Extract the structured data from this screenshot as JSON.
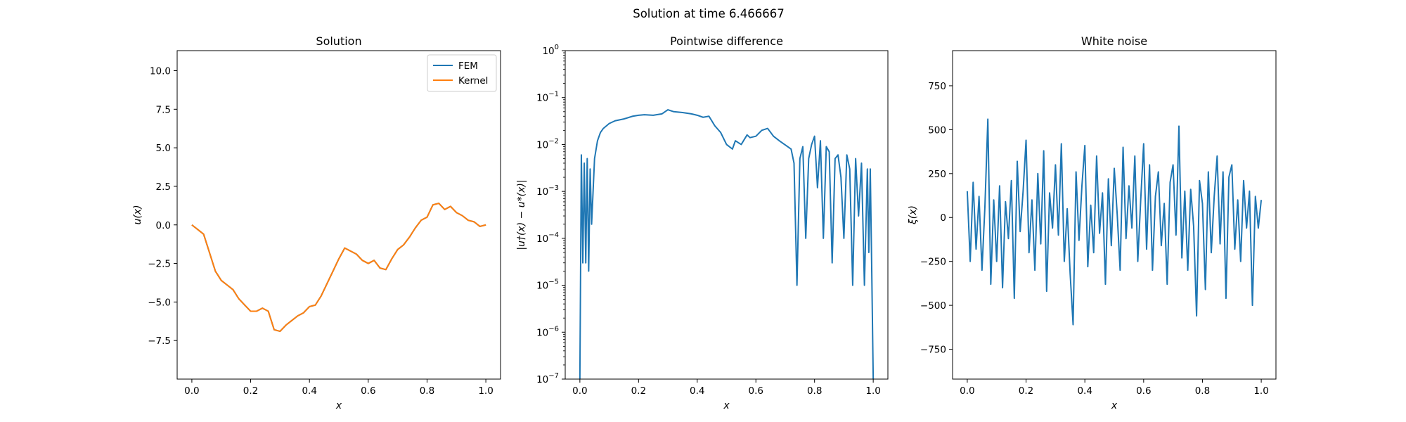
{
  "figure": {
    "title": "Solution at time 6.466667"
  },
  "colors": {
    "fem": "#1f77b4",
    "kernel": "#ff7f0e",
    "axes": "#000000",
    "background": "#ffffff"
  },
  "chart_data": [
    {
      "type": "line",
      "title": "Solution",
      "xlabel": "x",
      "ylabel": "u(x)",
      "xlim": [
        -0.05,
        1.05
      ],
      "ylim": [
        -10.0,
        11.3
      ],
      "xticks": [
        0.0,
        0.2,
        0.4,
        0.6,
        0.8,
        1.0
      ],
      "xtick_labels": [
        "0.0",
        "0.2",
        "0.4",
        "0.6",
        "0.8",
        "1.0"
      ],
      "yticks": [
        -7.5,
        -5.0,
        -2.5,
        0.0,
        2.5,
        5.0,
        7.5,
        10.0
      ],
      "ytick_labels": [
        "−7.5",
        "−5.0",
        "−2.5",
        "0.0",
        "2.5",
        "5.0",
        "7.5",
        "10.0"
      ],
      "legend": {
        "position": "top-right",
        "entries": [
          "FEM",
          "Kernel"
        ]
      },
      "grid": false,
      "x": [
        0.0,
        0.02,
        0.04,
        0.06,
        0.08,
        0.1,
        0.12,
        0.14,
        0.16,
        0.18,
        0.2,
        0.22,
        0.24,
        0.26,
        0.28,
        0.3,
        0.32,
        0.34,
        0.36,
        0.38,
        0.4,
        0.42,
        0.44,
        0.46,
        0.48,
        0.5,
        0.52,
        0.54,
        0.56,
        0.58,
        0.6,
        0.62,
        0.64,
        0.66,
        0.68,
        0.7,
        0.72,
        0.74,
        0.76,
        0.78,
        0.8,
        0.82,
        0.84,
        0.86,
        0.88,
        0.9,
        0.92,
        0.94,
        0.96,
        0.98,
        1.0
      ],
      "series": [
        {
          "name": "FEM",
          "values": [
            0.0,
            -0.3,
            -0.6,
            -1.8,
            -3.0,
            -3.6,
            -3.9,
            -4.2,
            -4.8,
            -5.2,
            -5.6,
            -5.6,
            -5.4,
            -5.6,
            -6.8,
            -6.9,
            -6.5,
            -6.2,
            -5.9,
            -5.7,
            -5.3,
            -5.2,
            -4.6,
            -3.8,
            -3.0,
            -2.2,
            -1.5,
            -1.7,
            -1.9,
            -2.3,
            -2.5,
            -2.3,
            -2.8,
            -2.9,
            -2.2,
            -1.6,
            -1.3,
            -0.8,
            -0.2,
            0.3,
            0.5,
            1.3,
            1.4,
            1.0,
            1.2,
            0.8,
            0.6,
            0.3,
            0.2,
            -0.1,
            0.0
          ]
        },
        {
          "name": "Kernel",
          "values": [
            0.0,
            -0.3,
            -0.6,
            -1.8,
            -3.0,
            -3.6,
            -3.9,
            -4.2,
            -4.8,
            -5.2,
            -5.6,
            -5.6,
            -5.4,
            -5.6,
            -6.8,
            -6.9,
            -6.5,
            -6.2,
            -5.9,
            -5.7,
            -5.3,
            -5.2,
            -4.6,
            -3.8,
            -3.0,
            -2.2,
            -1.5,
            -1.7,
            -1.9,
            -2.3,
            -2.5,
            -2.3,
            -2.8,
            -2.9,
            -2.2,
            -1.6,
            -1.3,
            -0.8,
            -0.2,
            0.3,
            0.5,
            1.3,
            1.4,
            1.0,
            1.2,
            0.8,
            0.6,
            0.3,
            0.2,
            -0.1,
            0.0
          ]
        }
      ]
    },
    {
      "type": "line",
      "title": "Pointwise difference",
      "xlabel": "x",
      "ylabel": "|u†(x) − u*(x)|",
      "yscale": "log",
      "xlim": [
        -0.05,
        1.05
      ],
      "ylim": [
        1e-07,
        1
      ],
      "xticks": [
        0.0,
        0.2,
        0.4,
        0.6,
        0.8,
        1.0
      ],
      "xtick_labels": [
        "0.0",
        "0.2",
        "0.4",
        "0.6",
        "0.8",
        "1.0"
      ],
      "ytick_exponents": [
        -7,
        -6,
        -5,
        -4,
        -3,
        -2,
        -1,
        0
      ],
      "grid": false,
      "x": [
        0.0,
        0.005,
        0.01,
        0.015,
        0.02,
        0.025,
        0.03,
        0.035,
        0.04,
        0.05,
        0.06,
        0.07,
        0.08,
        0.1,
        0.12,
        0.15,
        0.18,
        0.2,
        0.22,
        0.25,
        0.28,
        0.3,
        0.32,
        0.35,
        0.38,
        0.4,
        0.42,
        0.44,
        0.46,
        0.48,
        0.5,
        0.52,
        0.53,
        0.55,
        0.57,
        0.58,
        0.6,
        0.62,
        0.64,
        0.66,
        0.68,
        0.7,
        0.72,
        0.73,
        0.74,
        0.75,
        0.76,
        0.77,
        0.78,
        0.79,
        0.8,
        0.81,
        0.82,
        0.83,
        0.84,
        0.85,
        0.86,
        0.87,
        0.88,
        0.89,
        0.9,
        0.91,
        0.92,
        0.93,
        0.94,
        0.95,
        0.96,
        0.97,
        0.98,
        0.985,
        0.99,
        0.995,
        1.0
      ],
      "series": [
        {
          "name": "",
          "values": [
            1e-07,
            0.006,
            3e-05,
            0.004,
            3e-05,
            0.005,
            2e-05,
            0.003,
            0.0002,
            0.005,
            0.012,
            0.018,
            0.022,
            0.028,
            0.032,
            0.035,
            0.04,
            0.042,
            0.043,
            0.042,
            0.045,
            0.055,
            0.05,
            0.048,
            0.045,
            0.042,
            0.038,
            0.04,
            0.025,
            0.018,
            0.01,
            0.008,
            0.012,
            0.01,
            0.016,
            0.014,
            0.015,
            0.02,
            0.022,
            0.015,
            0.012,
            0.0098,
            0.008,
            0.004,
            1e-05,
            0.005,
            0.009,
            0.0001,
            0.005,
            0.01,
            0.015,
            0.0012,
            0.012,
            0.0001,
            0.009,
            0.007,
            3e-05,
            0.005,
            0.006,
            0.002,
            0.0001,
            0.006,
            0.003,
            1e-05,
            0.005,
            0.0003,
            0.004,
            1e-05,
            0.003,
            5e-05,
            0.003,
            2e-05,
            1e-07
          ]
        }
      ]
    },
    {
      "type": "line",
      "title": "White noise",
      "xlabel": "x",
      "ylabel": "ξ(x)",
      "xlim": [
        -0.05,
        1.05
      ],
      "ylim": [
        -920,
        950
      ],
      "xticks": [
        0.0,
        0.2,
        0.4,
        0.6,
        0.8,
        1.0
      ],
      "xtick_labels": [
        "0.0",
        "0.2",
        "0.4",
        "0.6",
        "0.8",
        "1.0"
      ],
      "yticks": [
        -750,
        -500,
        -250,
        0,
        250,
        500,
        750
      ],
      "ytick_labels": [
        "−750",
        "−500",
        "−250",
        "0",
        "250",
        "500",
        "750"
      ],
      "grid": false,
      "x": [
        0.0,
        0.01,
        0.02,
        0.03,
        0.04,
        0.05,
        0.06,
        0.07,
        0.08,
        0.09,
        0.1,
        0.11,
        0.12,
        0.13,
        0.14,
        0.15,
        0.16,
        0.17,
        0.18,
        0.19,
        0.2,
        0.21,
        0.22,
        0.23,
        0.24,
        0.25,
        0.26,
        0.27,
        0.28,
        0.29,
        0.3,
        0.31,
        0.32,
        0.33,
        0.34,
        0.35,
        0.36,
        0.37,
        0.38,
        0.39,
        0.4,
        0.41,
        0.42,
        0.43,
        0.44,
        0.45,
        0.46,
        0.47,
        0.48,
        0.49,
        0.5,
        0.51,
        0.52,
        0.53,
        0.54,
        0.55,
        0.56,
        0.57,
        0.58,
        0.59,
        0.6,
        0.61,
        0.62,
        0.63,
        0.64,
        0.65,
        0.66,
        0.67,
        0.68,
        0.69,
        0.7,
        0.71,
        0.72,
        0.73,
        0.74,
        0.75,
        0.76,
        0.77,
        0.78,
        0.79,
        0.8,
        0.81,
        0.82,
        0.83,
        0.84,
        0.85,
        0.86,
        0.87,
        0.88,
        0.89,
        0.9,
        0.91,
        0.92,
        0.93,
        0.94,
        0.95,
        0.96,
        0.97,
        0.98,
        0.99,
        1.0
      ],
      "series": [
        {
          "name": "",
          "values": [
            150,
            -250,
            200,
            -180,
            120,
            -300,
            60,
            560,
            -380,
            100,
            -250,
            180,
            -400,
            90,
            -120,
            210,
            -460,
            320,
            -80,
            150,
            440,
            -200,
            100,
            -300,
            250,
            -150,
            380,
            -420,
            140,
            -60,
            300,
            -100,
            420,
            -250,
            50,
            -320,
            -610,
            260,
            -130,
            180,
            410,
            -280,
            70,
            -200,
            350,
            -90,
            140,
            -380,
            220,
            -160,
            280,
            20,
            -300,
            400,
            -120,
            180,
            -60,
            350,
            -250,
            100,
            420,
            -180,
            300,
            -300,
            120,
            260,
            -160,
            80,
            -380,
            200,
            300,
            -100,
            520,
            -230,
            150,
            -300,
            160,
            -50,
            -560,
            210,
            80,
            -410,
            260,
            -200,
            120,
            350,
            -150,
            260,
            -460,
            230,
            300,
            -180,
            100,
            -250,
            210,
            -60,
            150,
            -500,
            120,
            -60,
            100
          ]
        }
      ]
    }
  ]
}
